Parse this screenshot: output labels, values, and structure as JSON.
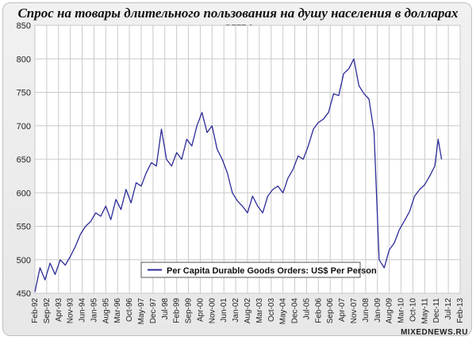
{
  "page": {
    "title": "Спрос на товары длительного пользования на душу населения в долларах США",
    "watermark": "MIXEDNEWS.RU"
  },
  "colors": {
    "line": "#2c2c9a",
    "grid": "#c9c9c9",
    "plot_bg": "#ffffff",
    "legend_border": "#2c2c9a"
  },
  "chart_data": {
    "type": "line",
    "title": "Спрос на товары длительного пользования на душу населения в долларах США",
    "xlabel": "",
    "ylabel": "",
    "ylim": [
      450,
      850
    ],
    "xlim": [
      "1992-02",
      "2013-02"
    ],
    "y_ticks": [
      450,
      500,
      550,
      600,
      650,
      700,
      750,
      800,
      850
    ],
    "x_tick_labels": [
      "Feb-92",
      "Sep-92",
      "Apr-93",
      "Nov-93",
      "Jun-94",
      "Jan-95",
      "Aug-95",
      "Mar-96",
      "Oct-96",
      "May-97",
      "Dec-97",
      "Jul-98",
      "Feb-99",
      "Sep-99",
      "Apr-00",
      "Nov-00",
      "Jun-01",
      "Jan-02",
      "Aug-02",
      "Mar-03",
      "Oct-03",
      "May-04",
      "Dec-04",
      "Jul-05",
      "Feb-06",
      "Sep-06",
      "Apr-07",
      "Nov-07",
      "Jun-08",
      "Jan-09",
      "Aug-09",
      "Mar-10",
      "Oct-10",
      "May-11",
      "Dec-11",
      "Jul-12",
      "Feb-13"
    ],
    "grid": true,
    "legend_position": "bottom-center",
    "series": [
      {
        "name": "Per Capita Durable Goods Orders: US$ Per Person",
        "x": [
          "1992-02",
          "1992-05",
          "1992-08",
          "1992-11",
          "1993-02",
          "1993-05",
          "1993-08",
          "1993-11",
          "1994-02",
          "1994-05",
          "1994-08",
          "1994-11",
          "1995-02",
          "1995-05",
          "1995-08",
          "1995-11",
          "1996-02",
          "1996-05",
          "1996-08",
          "1996-11",
          "1997-02",
          "1997-05",
          "1997-08",
          "1997-11",
          "1998-02",
          "1998-05",
          "1998-08",
          "1998-11",
          "1999-02",
          "1999-05",
          "1999-08",
          "1999-11",
          "2000-02",
          "2000-05",
          "2000-08",
          "2000-11",
          "2001-02",
          "2001-05",
          "2001-08",
          "2001-11",
          "2002-02",
          "2002-05",
          "2002-08",
          "2002-11",
          "2003-02",
          "2003-05",
          "2003-08",
          "2003-11",
          "2004-02",
          "2004-05",
          "2004-08",
          "2004-11",
          "2005-02",
          "2005-05",
          "2005-08",
          "2005-11",
          "2006-02",
          "2006-05",
          "2006-08",
          "2006-11",
          "2007-02",
          "2007-05",
          "2007-08",
          "2007-11",
          "2008-02",
          "2008-05",
          "2008-08",
          "2008-11",
          "2009-02",
          "2009-05",
          "2009-08",
          "2009-11",
          "2010-02",
          "2010-05",
          "2010-08",
          "2010-11",
          "2011-02",
          "2011-05",
          "2011-08",
          "2011-11",
          "2012-01",
          "2012-03"
        ],
        "values": [
          452,
          488,
          470,
          495,
          478,
          500,
          492,
          505,
          520,
          538,
          550,
          557,
          570,
          565,
          580,
          560,
          590,
          575,
          605,
          585,
          615,
          610,
          630,
          645,
          640,
          695,
          650,
          640,
          660,
          650,
          680,
          670,
          700,
          720,
          690,
          700,
          665,
          650,
          630,
          600,
          588,
          580,
          570,
          595,
          580,
          570,
          595,
          605,
          610,
          600,
          622,
          635,
          655,
          650,
          670,
          695,
          705,
          710,
          720,
          748,
          745,
          778,
          785,
          800,
          760,
          748,
          740,
          690,
          500,
          488,
          515,
          525,
          545,
          558,
          572,
          595,
          605,
          612,
          625,
          640,
          680,
          650
        ]
      }
    ]
  }
}
